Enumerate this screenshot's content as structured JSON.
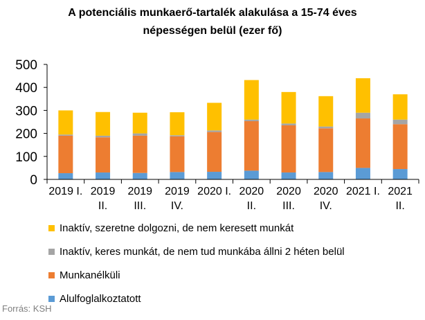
{
  "chart_data": {
    "type": "bar",
    "stacked": true,
    "title_line1": "A potenciális munkaerő-tartalék alakulása a 15-74 éves",
    "title_line2": "népességen belül (ezer fő)",
    "categories": [
      [
        "2019 I.",
        ""
      ],
      [
        "2019",
        "II."
      ],
      [
        "2019",
        "III."
      ],
      [
        "2019",
        "IV."
      ],
      [
        "2020 I.",
        ""
      ],
      [
        "2020",
        "II."
      ],
      [
        "2020",
        "III."
      ],
      [
        "2020",
        "IV."
      ],
      [
        "2021 I.",
        ""
      ],
      [
        "2021",
        "II."
      ]
    ],
    "yticks": [
      "0",
      "100",
      "200",
      "300",
      "400",
      "500"
    ],
    "ylim": [
      0,
      500
    ],
    "series": [
      {
        "name": "Alulfoglalkoztatott",
        "color": "#5b9bd5",
        "values": [
          27,
          30,
          28,
          32,
          33,
          38,
          30,
          32,
          50,
          45
        ]
      },
      {
        "name": "Munkanélküli",
        "color": "#ed7d31",
        "values": [
          163,
          153,
          162,
          155,
          173,
          215,
          205,
          190,
          215,
          195
        ]
      },
      {
        "name": "Inaktív, keres munkát, de nem tud munkába állni 2 héten belül",
        "color": "#a5a5a5",
        "values": [
          5,
          7,
          10,
          5,
          7,
          7,
          8,
          8,
          25,
          20
        ]
      },
      {
        "name": "Inaktív, szeretne dolgozni, de nem keresett munkát",
        "color": "#ffc000",
        "values": [
          105,
          103,
          90,
          100,
          120,
          172,
          137,
          132,
          150,
          110
        ]
      }
    ],
    "legend_order": [
      3,
      2,
      1,
      0
    ],
    "grid": false,
    "legend_position": "bottom-left"
  },
  "source_text": "Forrás: KSH"
}
